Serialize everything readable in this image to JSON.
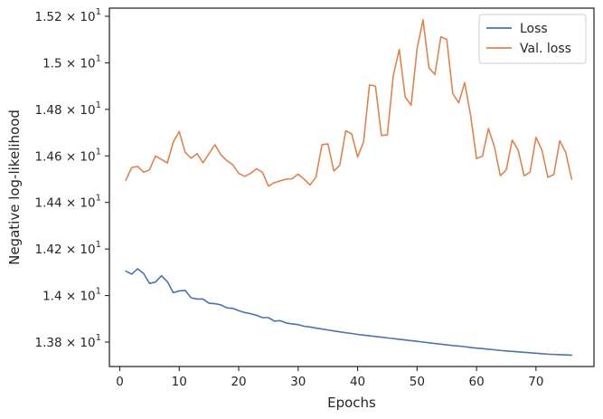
{
  "chart_data": {
    "type": "line",
    "title": "",
    "xlabel": "Epochs",
    "ylabel": "Negative log-likelihood",
    "xlim": [
      -1.75,
      79.75
    ],
    "ylim": [
      13.695,
      15.235
    ],
    "xticks": [
      0,
      10,
      20,
      30,
      40,
      50,
      60,
      70
    ],
    "xtick_labels": [
      "0",
      "10",
      "20",
      "30",
      "40",
      "50",
      "60",
      "70"
    ],
    "yticks": [
      13.8,
      14.0,
      14.2,
      14.4,
      14.6,
      14.8,
      15.0,
      15.2
    ],
    "ytick_labels": [
      [
        "1.38",
        "×",
        "10",
        "1"
      ],
      [
        "1.4",
        "×",
        "10",
        "1"
      ],
      [
        "1.42",
        "×",
        "10",
        "1"
      ],
      [
        "1.44",
        "×",
        "10",
        "1"
      ],
      [
        "1.46",
        "×",
        "10",
        "1"
      ],
      [
        "1.48",
        "×",
        "10",
        "1"
      ],
      [
        "1.5",
        "×",
        "10",
        "1"
      ],
      [
        "1.52",
        "×",
        "10",
        "1"
      ]
    ],
    "grid": false,
    "legend": {
      "placement": "top-right"
    },
    "x": [
      1,
      2,
      3,
      4,
      5,
      6,
      7,
      8,
      9,
      10,
      11,
      12,
      13,
      14,
      15,
      16,
      17,
      18,
      19,
      20,
      21,
      22,
      23,
      24,
      25,
      26,
      27,
      28,
      29,
      30,
      31,
      32,
      33,
      34,
      35,
      36,
      37,
      38,
      39,
      40,
      41,
      42,
      43,
      44,
      45,
      46,
      47,
      48,
      49,
      50,
      51,
      52,
      53,
      54,
      55,
      56,
      57,
      58,
      59,
      60,
      61,
      62,
      63,
      64,
      65,
      66,
      67,
      68,
      69,
      70,
      71,
      72,
      73,
      74,
      75,
      76
    ],
    "series": [
      {
        "name": "Loss",
        "color": "#4c72b0",
        "values": [
          14.105,
          14.092,
          14.115,
          14.095,
          14.052,
          14.058,
          14.085,
          14.06,
          14.012,
          14.02,
          14.022,
          13.99,
          13.985,
          13.985,
          13.967,
          13.965,
          13.96,
          13.947,
          13.945,
          13.935,
          13.927,
          13.922,
          13.915,
          13.905,
          13.905,
          13.89,
          13.892,
          13.882,
          13.878,
          13.875,
          13.868,
          13.865,
          13.86,
          13.856,
          13.852,
          13.848,
          13.844,
          13.84,
          13.837,
          13.833,
          13.83,
          13.827,
          13.824,
          13.821,
          13.818,
          13.815,
          13.812,
          13.809,
          13.806,
          13.803,
          13.8,
          13.797,
          13.794,
          13.791,
          13.788,
          13.785,
          13.783,
          13.78,
          13.777,
          13.774,
          13.772,
          13.769,
          13.767,
          13.764,
          13.762,
          13.76,
          13.758,
          13.756,
          13.754,
          13.752,
          13.75,
          13.748,
          13.747,
          13.746,
          13.745,
          13.744
        ]
      },
      {
        "name": "Val. loss",
        "color": "#dd8452",
        "values": [
          14.495,
          14.55,
          14.555,
          14.53,
          14.54,
          14.6,
          14.585,
          14.57,
          14.66,
          14.705,
          14.615,
          14.59,
          14.61,
          14.57,
          14.61,
          14.648,
          14.605,
          14.58,
          14.562,
          14.525,
          14.512,
          14.525,
          14.545,
          14.53,
          14.47,
          14.485,
          14.493,
          14.5,
          14.502,
          14.522,
          14.5,
          14.475,
          14.51,
          14.648,
          14.652,
          14.535,
          14.56,
          14.708,
          14.695,
          14.595,
          14.66,
          14.905,
          14.9,
          14.688,
          14.69,
          14.945,
          15.058,
          14.853,
          14.818,
          15.06,
          15.185,
          14.978,
          14.95,
          15.112,
          15.1,
          14.868,
          14.828,
          14.915,
          14.775,
          14.588,
          14.6,
          14.718,
          14.64,
          14.515,
          14.54,
          14.668,
          14.625,
          14.515,
          14.53,
          14.68,
          14.625,
          14.508,
          14.52,
          14.665,
          14.615,
          14.5
        ]
      }
    ]
  }
}
